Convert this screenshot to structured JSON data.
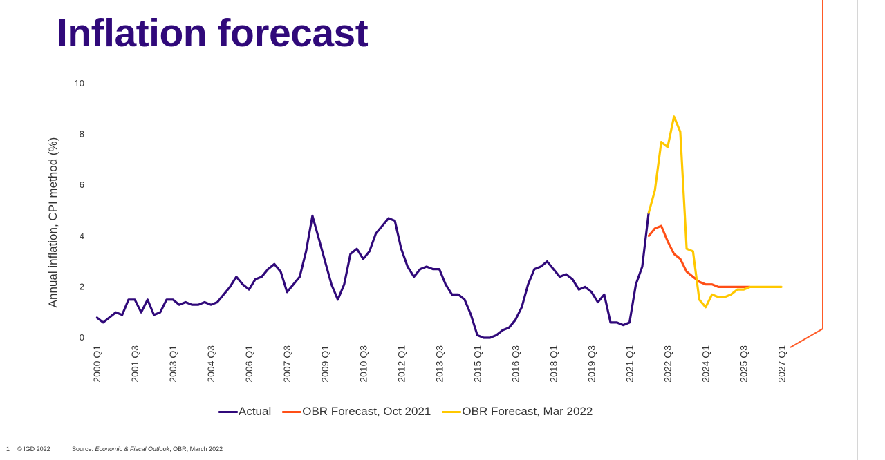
{
  "slide": {
    "title": "Inflation forecast",
    "footer": {
      "page_number": "1",
      "copyright": "© IGD 2022",
      "source_prefix": "Source: ",
      "source_title": "Economic & Fiscal Outlook",
      "source_suffix": ", OBR, March 2022"
    }
  },
  "legend": {
    "items": [
      {
        "label": "Actual",
        "color": "#30097a"
      },
      {
        "label": "OBR Forecast, Oct 2021",
        "color": "#ff4f17"
      },
      {
        "label": "OBR Forecast, Mar 2022",
        "color": "#ffc800"
      }
    ]
  },
  "colors": {
    "title": "#30097a",
    "accent_line": "#ff5a26",
    "axis": "#d9d9d9",
    "divider": "#d6d6d6"
  },
  "chart_data": {
    "type": "line",
    "title": "",
    "xlabel": "",
    "ylabel": "Annual inflation, CPI method (%)",
    "ylim": [
      0,
      10
    ],
    "y_ticks": [
      0,
      2,
      4,
      6,
      8,
      10
    ],
    "grid": false,
    "legend_position": "bottom",
    "x_start": "2000 Q1",
    "x_end": "2027 Q1",
    "x_tick_labels": [
      "2000 Q1",
      "2001 Q3",
      "2003 Q1",
      "2004 Q3",
      "2006 Q1",
      "2007 Q3",
      "2009 Q1",
      "2010 Q3",
      "2012 Q1",
      "2013 Q3",
      "2015 Q1",
      "2016 Q3",
      "2018 Q1",
      "2019 Q3",
      "2021 Q1",
      "2022 Q3",
      "2024 Q1",
      "2025 Q3",
      "2027 Q1"
    ],
    "series": [
      {
        "name": "Actual",
        "color": "#30097a",
        "start": "2000 Q1",
        "values": [
          0.8,
          0.6,
          0.8,
          1.0,
          0.9,
          1.5,
          1.5,
          1.0,
          1.5,
          0.9,
          1.0,
          1.5,
          1.5,
          1.3,
          1.4,
          1.3,
          1.3,
          1.4,
          1.3,
          1.4,
          1.7,
          2.0,
          2.4,
          2.1,
          1.9,
          2.3,
          2.4,
          2.7,
          2.9,
          2.6,
          1.8,
          2.1,
          2.4,
          3.4,
          4.8,
          3.9,
          3.0,
          2.1,
          1.5,
          2.1,
          3.3,
          3.5,
          3.1,
          3.4,
          4.1,
          4.4,
          4.7,
          4.6,
          3.5,
          2.8,
          2.4,
          2.7,
          2.8,
          2.7,
          2.7,
          2.1,
          1.7,
          1.7,
          1.5,
          0.9,
          0.1,
          0.0,
          0.0,
          0.1,
          0.3,
          0.4,
          0.7,
          1.2,
          2.1,
          2.7,
          2.8,
          3.0,
          2.7,
          2.4,
          2.5,
          2.3,
          1.9,
          2.0,
          1.8,
          1.4,
          1.7,
          0.6,
          0.6,
          0.5,
          0.6,
          2.1,
          2.8,
          4.9
        ]
      },
      {
        "name": "OBR Forecast, Oct 2021",
        "color": "#ff4f17",
        "start": "2021 Q4",
        "values": [
          4.0,
          4.3,
          4.4,
          3.8,
          3.3,
          3.1,
          2.6,
          2.4,
          2.2,
          2.1,
          2.1,
          2.0,
          2.0,
          2.0,
          2.0,
          2.0,
          2.0
        ]
      },
      {
        "name": "OBR Forecast, Mar 2022",
        "color": "#ffc800",
        "start": "2021 Q4",
        "values": [
          4.9,
          5.8,
          7.7,
          7.5,
          8.7,
          8.1,
          3.5,
          3.4,
          1.5,
          1.2,
          1.7,
          1.6,
          1.6,
          1.7,
          1.9,
          1.9,
          2.0,
          2.0,
          2.0,
          2.0,
          2.0,
          2.0
        ]
      }
    ]
  }
}
